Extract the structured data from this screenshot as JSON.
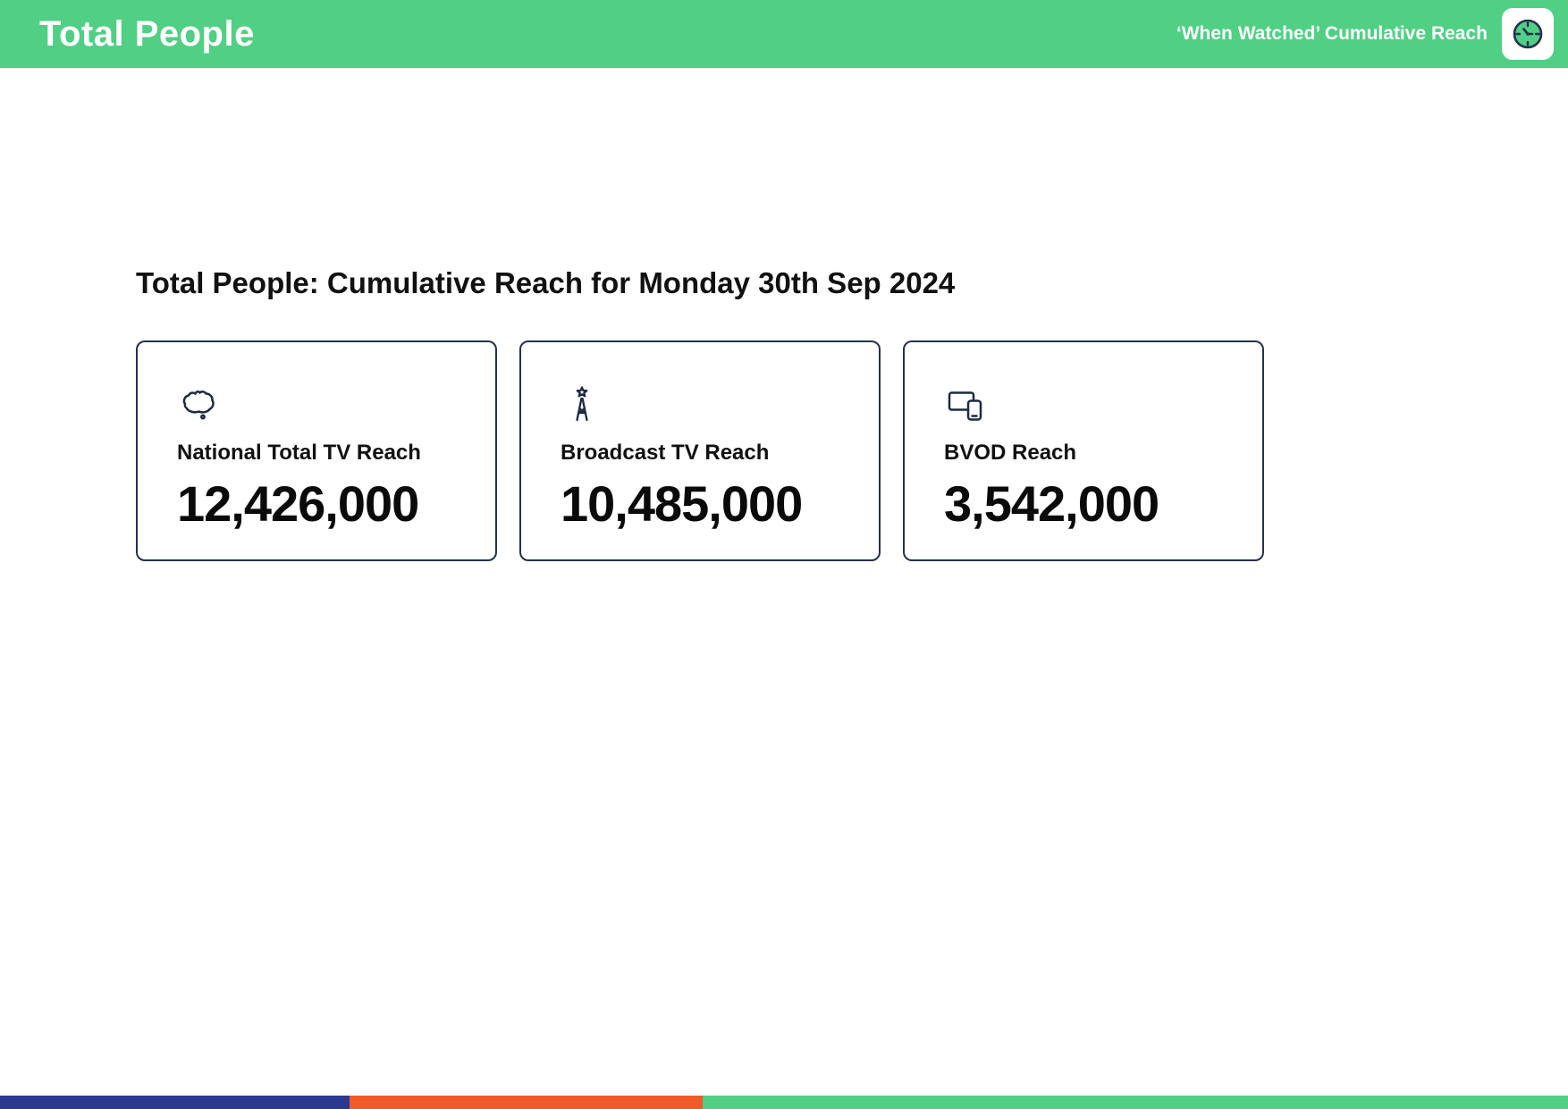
{
  "header": {
    "title": "Total People",
    "subtitle": "‘When Watched’ Cumulative Reach",
    "accent_color": "#50cf85"
  },
  "main": {
    "heading": "Total People: Cumulative Reach for Monday 30th Sep 2024",
    "cards": [
      {
        "icon": "australia-map-icon",
        "label": "National Total TV Reach",
        "value": "12,426,000"
      },
      {
        "icon": "broadcast-tower-icon",
        "label": "Broadcast TV Reach",
        "value": "10,485,000"
      },
      {
        "icon": "devices-icon",
        "label": "BVOD Reach",
        "value": "3,542,000"
      }
    ]
  },
  "footer": {
    "segments": [
      {
        "name": "navy",
        "color": "#2b3990",
        "width_pct": 22.3
      },
      {
        "name": "orange",
        "color": "#f15a29",
        "width_pct": 22.5
      },
      {
        "name": "green",
        "color": "#50cf85",
        "width_pct": 55.2
      }
    ]
  }
}
